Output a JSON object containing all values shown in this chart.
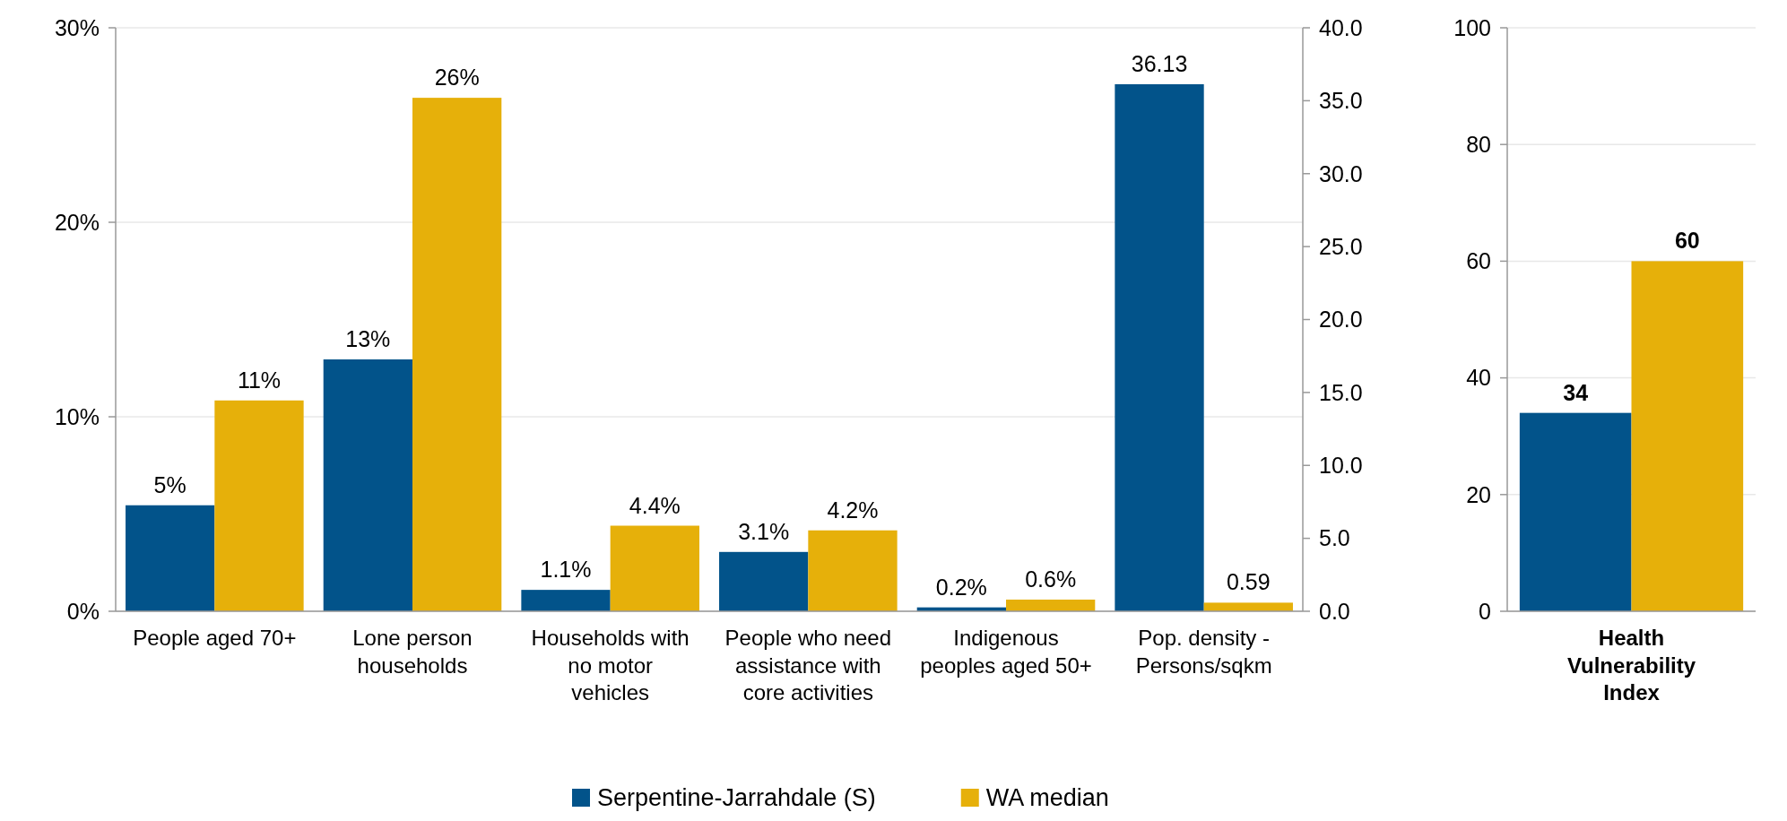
{
  "chart_data": [
    {
      "type": "bar",
      "categories": [
        "People aged 70+",
        "Lone person households",
        "Households with no motor vehicles",
        "People who need assistance with core activities",
        "Indigenous peoples aged 50+",
        "Pop. density - Persons/sqkm"
      ],
      "series": [
        {
          "name": "Serpentine-Jarrahdale (S)",
          "color": "#02538a",
          "values": [
            5.45,
            12.95,
            1.1,
            3.05,
            0.2,
            null
          ],
          "value_labels": [
            "5%",
            "13%",
            "1.1%",
            "3.1%",
            "0.2%",
            null
          ]
        },
        {
          "name": "WA median",
          "color": "#e6b00a",
          "values": [
            10.84,
            26.4,
            4.4,
            4.16,
            0.6,
            null
          ],
          "value_labels": [
            "11%",
            "26%",
            "4.4%",
            "4.2%",
            "0.6%",
            null
          ]
        },
        {
          "color": "#02538a",
          "axis": "y2",
          "values": [
            null,
            null,
            null,
            null,
            null,
            36.13
          ],
          "value_labels": [
            null,
            null,
            null,
            null,
            null,
            "36.13"
          ]
        },
        {
          "color": "#e6b00a",
          "axis": "y2",
          "values": [
            null,
            null,
            null,
            null,
            null,
            0.59
          ],
          "value_labels": [
            null,
            null,
            null,
            null,
            null,
            "0.59"
          ]
        }
      ],
      "ylim": [
        0,
        30
      ],
      "yticks": [
        {
          "value": 0,
          "label": "0%"
        },
        {
          "value": 10,
          "label": "10%"
        },
        {
          "value": 20,
          "label": "20%"
        },
        {
          "value": 30,
          "label": "30%"
        }
      ],
      "y2lim": [
        0,
        40
      ],
      "y2ticks": [
        {
          "value": 0,
          "label": "0.0"
        },
        {
          "value": 5,
          "label": "5.0"
        },
        {
          "value": 10,
          "label": "10.0"
        },
        {
          "value": 15,
          "label": "15.0"
        },
        {
          "value": 20,
          "label": "20.0"
        },
        {
          "value": 25,
          "label": "25.0"
        },
        {
          "value": 30,
          "label": "30.0"
        },
        {
          "value": 35,
          "label": "35.0"
        },
        {
          "value": 40,
          "label": "40.0"
        }
      ],
      "grid": "y",
      "legend": "bottom"
    },
    {
      "type": "bar",
      "categories": [
        "Health Vulnerability Index"
      ],
      "series": [
        {
          "color": "#02538a",
          "values": [
            34
          ]
        },
        {
          "color": "#e6b00a",
          "values": [
            60
          ]
        }
      ],
      "ylim": [
        0,
        100
      ],
      "yticks": [
        0,
        20,
        40,
        60,
        80,
        100
      ],
      "grid": "y",
      "data_labels": true
    }
  ]
}
